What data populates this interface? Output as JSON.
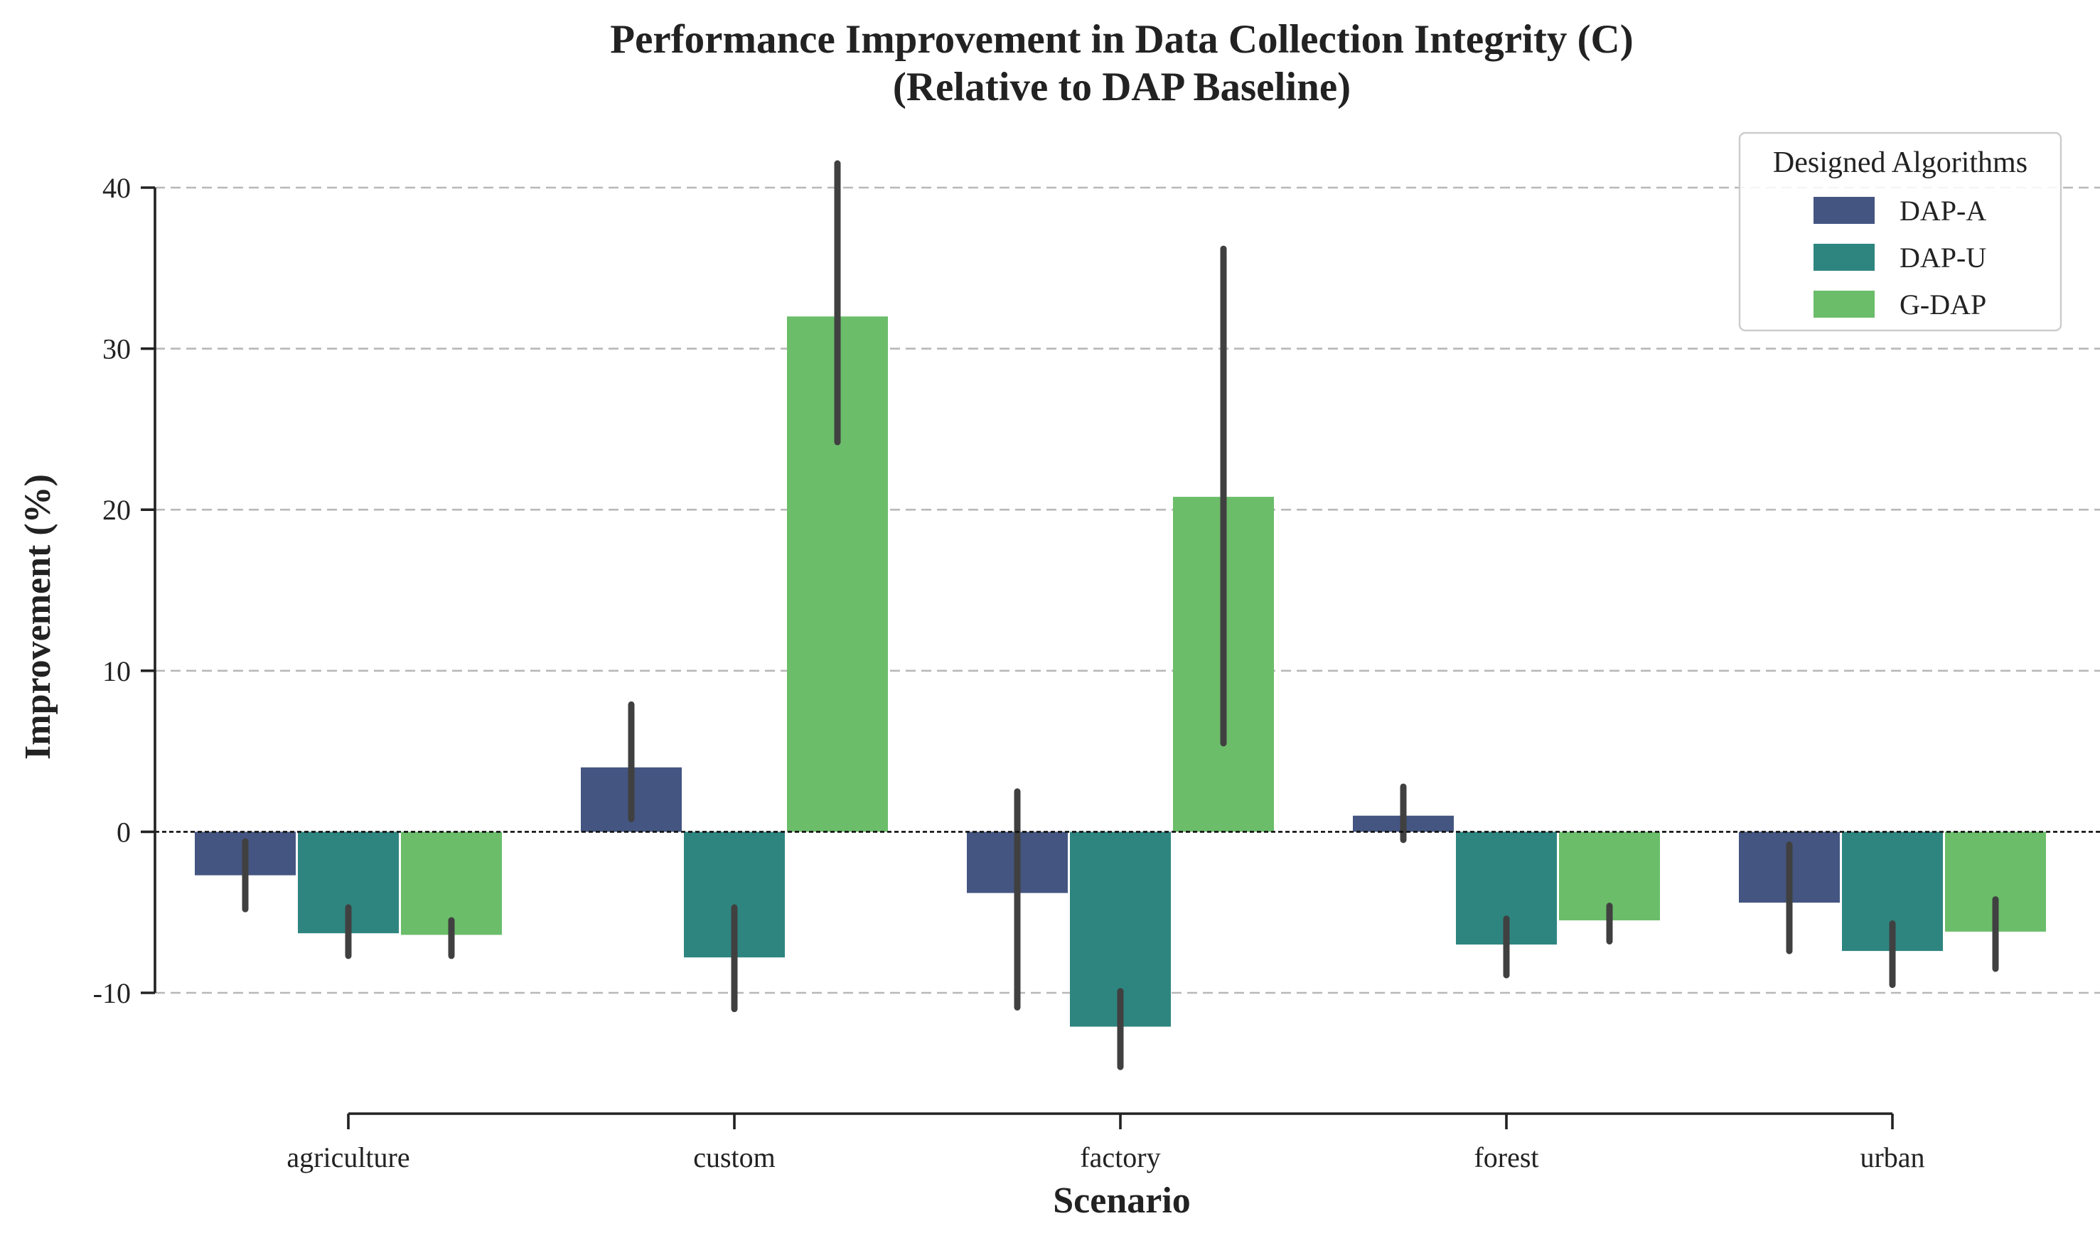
{
  "chart_data": {
    "type": "bar",
    "title": "Performance Improvement in Data Collection Integrity (C)",
    "subtitle": "(Relative to DAP Baseline)",
    "xlabel": "Scenario",
    "ylabel": "Improvement (%)",
    "categories": [
      "agriculture",
      "custom",
      "factory",
      "forest",
      "urban"
    ],
    "ylim": [
      -18,
      44
    ],
    "yticks": [
      -10,
      0,
      10,
      20,
      30,
      40
    ],
    "grid": true,
    "zero_line": true,
    "legend": {
      "title": "Designed Algorithms",
      "placement": "top-right"
    },
    "series": [
      {
        "name": "DAP-A",
        "color": "#445581",
        "values": [
          -2.7,
          4.0,
          -3.8,
          1.0,
          -4.4
        ],
        "error_low": [
          -4.8,
          0.8,
          -10.9,
          -0.5,
          -7.4
        ],
        "error_high": [
          -0.6,
          7.9,
          2.5,
          2.8,
          -0.8
        ]
      },
      {
        "name": "DAP-U",
        "color": "#2e8580",
        "values": [
          -6.3,
          -7.8,
          -12.1,
          -7.0,
          -7.4
        ],
        "error_low": [
          -7.7,
          -11.0,
          -14.6,
          -8.9,
          -9.5
        ],
        "error_high": [
          -4.7,
          -4.7,
          -9.9,
          -5.4,
          -5.7
        ]
      },
      {
        "name": "G-DAP",
        "color": "#6bbd6a",
        "values": [
          -6.4,
          32.0,
          20.8,
          -5.5,
          -6.2
        ],
        "error_low": [
          -7.7,
          24.2,
          5.5,
          -6.8,
          -8.5
        ],
        "error_high": [
          -5.5,
          41.5,
          36.2,
          -4.6,
          -4.2
        ]
      }
    ]
  }
}
